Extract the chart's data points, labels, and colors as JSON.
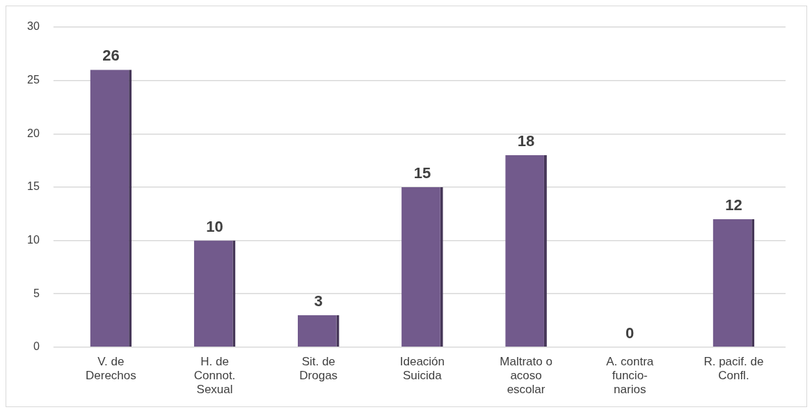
{
  "chart_data": {
    "type": "bar",
    "categories": [
      "V. de\nDerechos",
      "H. de\nConnot.\nSexual",
      "Sit. de\nDrogas",
      "Ideación\nSuicida",
      "Maltrato o\nacoso\nescolar",
      "A. contra\nfuncio-\nnarios",
      "R. pacif. de\nConfl."
    ],
    "values": [
      26,
      10,
      3,
      15,
      18,
      0,
      12
    ],
    "color": "#725a8c",
    "ylim": [
      0,
      30
    ],
    "yticks": [
      0,
      5,
      10,
      15,
      20,
      25,
      30
    ],
    "grid": "y",
    "data_labels": true,
    "legend": false
  }
}
